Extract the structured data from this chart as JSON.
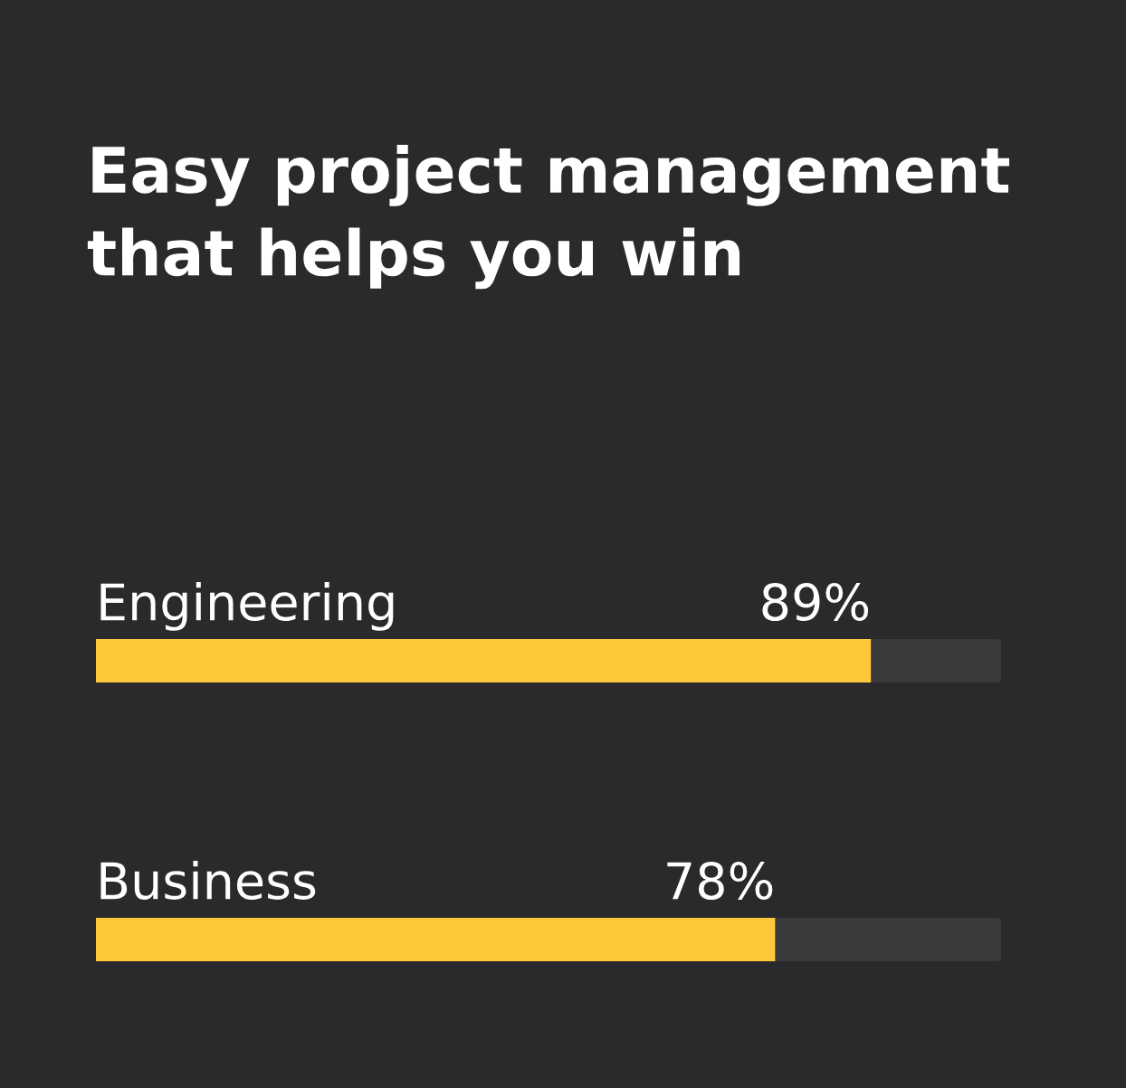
{
  "chart_data": {
    "type": "bar",
    "orientation": "horizontal",
    "title": "Easy project management\nthat helps you win",
    "categories": [
      "Engineering",
      "Business"
    ],
    "series": [
      {
        "color": "#ffc83a",
        "values": [
          89,
          78
        ],
        "value_labels": [
          "89%",
          "78%"
        ]
      }
    ]
  }
}
